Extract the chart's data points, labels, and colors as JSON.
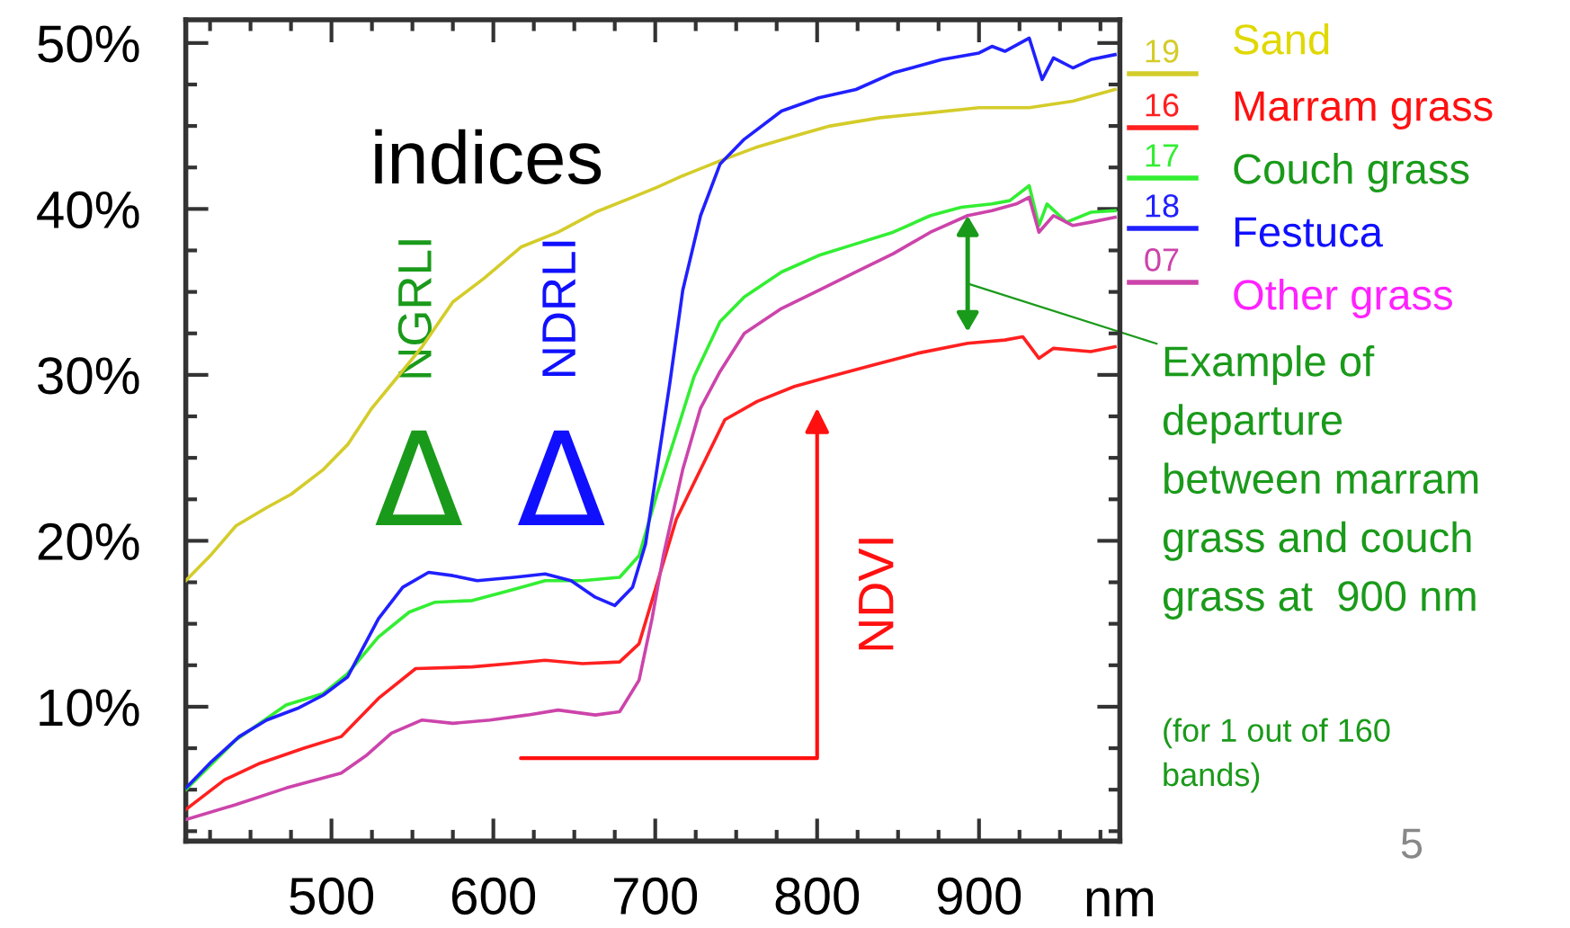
{
  "chart_data": {
    "type": "line",
    "xlabel": "nm",
    "xlim": [
      410,
      987
    ],
    "ylim": [
      1.9,
      51.4
    ],
    "xticks": [
      500,
      600,
      700,
      800,
      900
    ],
    "yticks": [
      {
        "value": 10,
        "label": "10%"
      },
      {
        "value": 20,
        "label": "20%"
      },
      {
        "value": 30,
        "label": "30%"
      },
      {
        "value": 40,
        "label": "40%"
      },
      {
        "value": 50,
        "label": "50%"
      }
    ],
    "grid": false,
    "legend": "right",
    "marker": "none",
    "line_style": "solid",
    "series": [
      {
        "name": "Sand",
        "color": "#d4cc2a",
        "x": [
          410,
          426,
          441,
          460,
          475,
          495,
          510,
          525,
          541,
          556,
          575,
          594,
          617,
          640,
          663,
          686,
          701,
          717,
          740,
          762,
          786,
          808,
          839,
          870,
          900,
          931,
          958,
          984
        ],
        "values": [
          17.6,
          19.2,
          20.9,
          22.0,
          22.8,
          24.3,
          25.8,
          28.0,
          29.9,
          31.7,
          34.4,
          35.8,
          37.7,
          38.6,
          39.8,
          40.7,
          41.3,
          42.0,
          42.9,
          43.7,
          44.4,
          45.0,
          45.5,
          45.8,
          46.1,
          46.1,
          46.5,
          47.2
        ]
      },
      {
        "name": "Marram grass",
        "color": "#ff2020",
        "x": [
          410,
          434,
          456,
          483,
          506,
          529,
          552,
          587,
          610,
          632,
          655,
          678,
          690,
          698,
          705,
          713,
          728,
          743,
          763,
          786,
          808,
          835,
          862,
          893,
          916,
          927,
          937,
          946,
          969,
          984
        ],
        "values": [
          3.8,
          5.6,
          6.6,
          7.5,
          8.2,
          10.5,
          12.3,
          12.4,
          12.6,
          12.8,
          12.6,
          12.7,
          13.8,
          16.4,
          18.7,
          21.3,
          24.3,
          27.3,
          28.4,
          29.3,
          29.9,
          30.6,
          31.3,
          31.9,
          32.1,
          32.3,
          31.0,
          31.6,
          31.4,
          31.7
        ]
      },
      {
        "name": "Couch grass",
        "color": "#33ee33",
        "x": [
          410,
          441,
          472,
          495,
          510,
          529,
          548,
          564,
          587,
          610,
          632,
          655,
          678,
          690,
          701,
          713,
          724,
          740,
          755,
          778,
          801,
          824,
          847,
          870,
          889,
          908,
          919,
          931,
          937,
          942,
          954,
          969,
          984
        ],
        "values": [
          5.0,
          8.0,
          10.1,
          10.8,
          12.0,
          14.2,
          15.7,
          16.3,
          16.4,
          17.0,
          17.6,
          17.6,
          17.8,
          19.1,
          22.8,
          26.5,
          29.9,
          33.2,
          34.7,
          36.2,
          37.2,
          37.9,
          38.6,
          39.6,
          40.1,
          40.3,
          40.5,
          41.4,
          39.0,
          40.3,
          39.2,
          39.8,
          39.9
        ]
      },
      {
        "name": "Festuca",
        "color": "#2020ff",
        "x": [
          410,
          426,
          443,
          460,
          479,
          495,
          510,
          529,
          544,
          560,
          575,
          590,
          613,
          632,
          648,
          663,
          675,
          686,
          694,
          701,
          709,
          717,
          728,
          740,
          755,
          778,
          801,
          824,
          847,
          877,
          900,
          908,
          916,
          931,
          939,
          946,
          958,
          969,
          984
        ],
        "values": [
          5.1,
          6.7,
          8.2,
          9.2,
          9.9,
          10.7,
          11.8,
          15.3,
          17.2,
          18.1,
          17.9,
          17.6,
          17.8,
          18.0,
          17.6,
          16.6,
          16.1,
          17.2,
          19.8,
          24.3,
          29.5,
          35.1,
          39.6,
          42.7,
          44.2,
          45.9,
          46.7,
          47.2,
          48.2,
          49.0,
          49.4,
          49.8,
          49.5,
          50.3,
          47.8,
          49.1,
          48.5,
          49.0,
          49.3
        ]
      },
      {
        "name": "Other grass",
        "color": "#cc44aa",
        "x": [
          410,
          441,
          472,
          506,
          522,
          537,
          556,
          575,
          598,
          621,
          640,
          663,
          678,
          690,
          698,
          705,
          717,
          728,
          740,
          755,
          778,
          801,
          824,
          847,
          870,
          893,
          908,
          923,
          931,
          937,
          946,
          958,
          969,
          984
        ],
        "values": [
          3.2,
          4.1,
          5.1,
          6.0,
          7.1,
          8.4,
          9.2,
          9.0,
          9.2,
          9.5,
          9.8,
          9.5,
          9.7,
          11.6,
          15.3,
          19.1,
          24.3,
          28.0,
          30.2,
          32.5,
          34.0,
          35.1,
          36.2,
          37.3,
          38.6,
          39.6,
          39.9,
          40.3,
          40.7,
          38.6,
          39.6,
          39.0,
          39.2,
          39.5
        ]
      }
    ],
    "annotations": [
      "19",
      "16",
      "17",
      "18",
      "07",
      "indices",
      "NGRLI",
      "NDRLI",
      "Δ",
      "Δ",
      "NDVI",
      "Example of\ndeparture\nbetween marram\ngrass and couch\ngrass at  900 nm",
      "(for 1 out of 160\nbands)",
      "5"
    ]
  }
}
